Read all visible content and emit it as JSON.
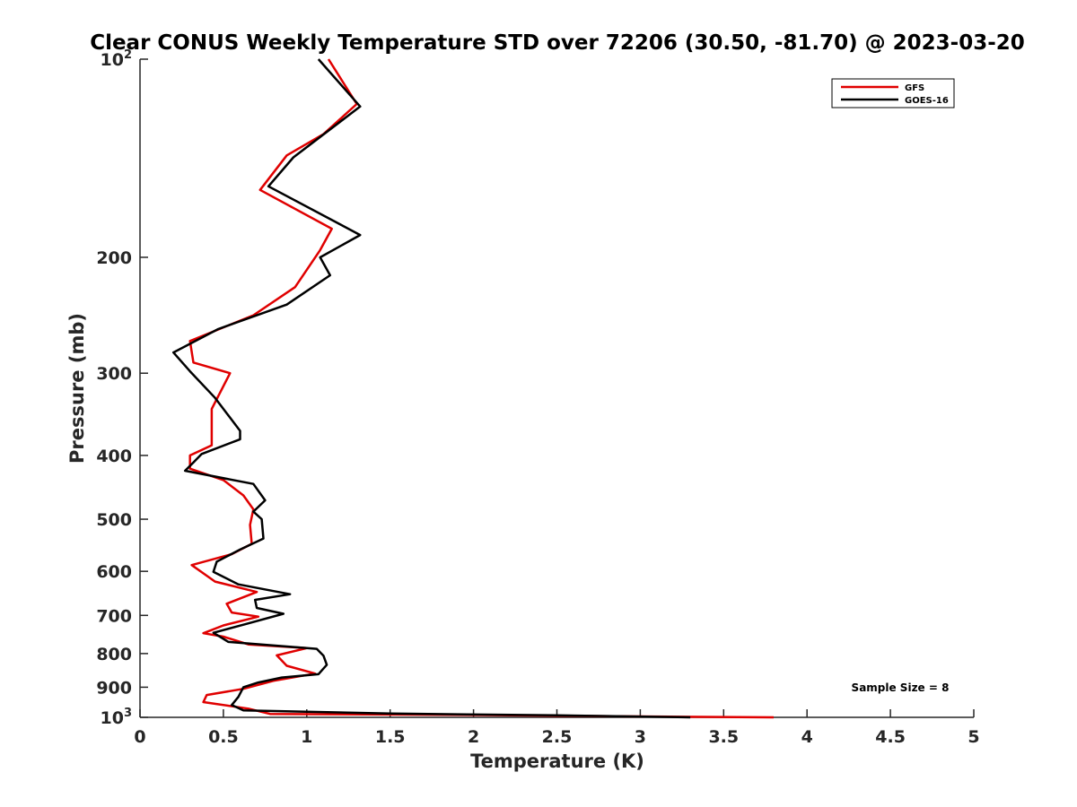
{
  "chart_data": {
    "type": "line",
    "title": "Clear CONUS Weekly Temperature STD over 72206 (30.50, -81.70) @ 2023-03-20",
    "xlabel": "Temperature (K)",
    "ylabel": "Pressure (mb)",
    "xlim": [
      0,
      5
    ],
    "ylim": [
      100,
      1000
    ],
    "y_scale": "log",
    "y_reversed": true,
    "grid": false,
    "legend_position": "top-right",
    "x_ticks": [
      "0",
      "0.5",
      "1",
      "1.5",
      "2",
      "2.5",
      "3",
      "3.5",
      "4",
      "4.5",
      "5"
    ],
    "x_tick_values": [
      0,
      0.5,
      1,
      1.5,
      2,
      2.5,
      3,
      3.5,
      4,
      4.5,
      5
    ],
    "y_ticks": [
      {
        "value": 100,
        "base": "10",
        "exp": "2"
      },
      {
        "value": 200,
        "label": "200"
      },
      {
        "value": 300,
        "label": "300"
      },
      {
        "value": 400,
        "label": "400"
      },
      {
        "value": 500,
        "label": "500"
      },
      {
        "value": 600,
        "label": "600"
      },
      {
        "value": 700,
        "label": "700"
      },
      {
        "value": 800,
        "label": "800"
      },
      {
        "value": 900,
        "label": "900"
      },
      {
        "value": 1000,
        "base": "10",
        "exp": "3"
      }
    ],
    "series": [
      {
        "name": "GFS",
        "color": "#e00000",
        "points": [
          [
            1.13,
            100
          ],
          [
            1.3,
            117
          ],
          [
            1.1,
            130
          ],
          [
            0.88,
            140
          ],
          [
            0.72,
            158
          ],
          [
            1.15,
            181
          ],
          [
            1.08,
            195
          ],
          [
            0.93,
            222
          ],
          [
            0.68,
            245
          ],
          [
            0.3,
            268
          ],
          [
            0.32,
            289
          ],
          [
            0.54,
            300
          ],
          [
            0.43,
            340
          ],
          [
            0.43,
            386
          ],
          [
            0.3,
            400
          ],
          [
            0.3,
            419
          ],
          [
            0.5,
            436
          ],
          [
            0.62,
            460
          ],
          [
            0.68,
            483
          ],
          [
            0.66,
            510
          ],
          [
            0.67,
            545
          ],
          [
            0.55,
            565
          ],
          [
            0.31,
            587
          ],
          [
            0.45,
            622
          ],
          [
            0.7,
            645
          ],
          [
            0.52,
            672
          ],
          [
            0.55,
            693
          ],
          [
            0.71,
            703
          ],
          [
            0.5,
            725
          ],
          [
            0.38,
            745
          ],
          [
            0.5,
            754
          ],
          [
            0.65,
            775
          ],
          [
            1.0,
            785
          ],
          [
            0.82,
            805
          ],
          [
            0.88,
            835
          ],
          [
            1.05,
            858
          ],
          [
            0.8,
            880
          ],
          [
            0.62,
            905
          ],
          [
            0.4,
            925
          ],
          [
            0.38,
            948
          ],
          [
            0.65,
            970
          ],
          [
            0.78,
            988
          ],
          [
            2.0,
            992
          ],
          [
            3.0,
            997
          ],
          [
            3.8,
            1000
          ]
        ]
      },
      {
        "name": "GOES-16",
        "color": "#000000",
        "points": [
          [
            1.07,
            100
          ],
          [
            1.32,
            118
          ],
          [
            0.92,
            141
          ],
          [
            0.77,
            156
          ],
          [
            1.32,
            185
          ],
          [
            1.08,
            200
          ],
          [
            1.14,
            213
          ],
          [
            0.88,
            236
          ],
          [
            0.47,
            257
          ],
          [
            0.2,
            279
          ],
          [
            0.3,
            298
          ],
          [
            0.45,
            327
          ],
          [
            0.6,
            367
          ],
          [
            0.6,
            378
          ],
          [
            0.37,
            398
          ],
          [
            0.32,
            410
          ],
          [
            0.27,
            422
          ],
          [
            0.68,
            442
          ],
          [
            0.75,
            468
          ],
          [
            0.68,
            487
          ],
          [
            0.73,
            500
          ],
          [
            0.74,
            535
          ],
          [
            0.6,
            556
          ],
          [
            0.46,
            580
          ],
          [
            0.44,
            601
          ],
          [
            0.59,
            628
          ],
          [
            0.9,
            650
          ],
          [
            0.69,
            663
          ],
          [
            0.7,
            682
          ],
          [
            0.86,
            696
          ],
          [
            0.63,
            722
          ],
          [
            0.44,
            744
          ],
          [
            0.53,
            768
          ],
          [
            1.06,
            787
          ],
          [
            1.1,
            806
          ],
          [
            1.12,
            832
          ],
          [
            1.07,
            860
          ],
          [
            0.85,
            870
          ],
          [
            0.71,
            885
          ],
          [
            0.62,
            900
          ],
          [
            0.59,
            931
          ],
          [
            0.55,
            958
          ],
          [
            0.62,
            976
          ],
          [
            1.5,
            987
          ],
          [
            2.5,
            993
          ],
          [
            3.3,
            1000
          ]
        ]
      }
    ],
    "annotation": "Sample Size = 8"
  }
}
